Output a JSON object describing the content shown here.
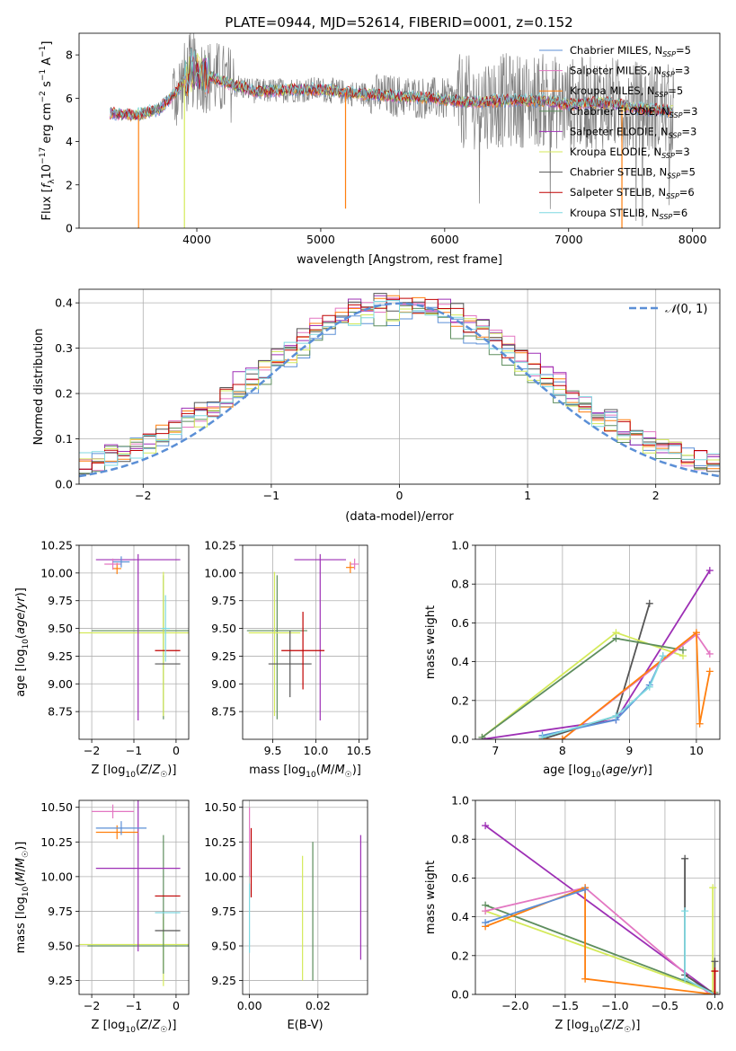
{
  "figure": {
    "title": "PLATE=0944, MJD=52614, FIBERID=0001, z=0.152"
  },
  "colors": {
    "chabrier_miles": "#5b8fd6",
    "salpeter_miles": "#e377c2",
    "kroupa_miles": "#ff7f0e",
    "chabrier_elodie": "#5e8e5e",
    "salpeter_elodie": "#9d2fb5",
    "kroupa_elodie": "#d4ea5a",
    "chabrier_stelib": "#555555",
    "salpeter_stelib": "#c00000",
    "kroupa_stelib": "#7fd8e0",
    "data_spectrum": "#808080",
    "normal_curve": "#5b8fd6"
  },
  "chart_data": [
    {
      "id": "spectrum",
      "type": "line",
      "xlabel": "wavelength [Angstrom, rest frame]",
      "ylabel": "Flux [f_λ 10^-17 erg cm^-2 s^-1 A^-1]",
      "xlim": [
        3050,
        8220
      ],
      "ylim": [
        0,
        9
      ],
      "xticks": [
        4000,
        5000,
        6000,
        7000,
        8000
      ],
      "yticks": [
        0,
        2,
        4,
        6,
        8
      ],
      "grid": false,
      "legend_position": "top-right",
      "legend": [
        "Chabrier MILES, N_SSP=5",
        "Salpeter MILES, N_SSP=3",
        "Kroupa MILES, N_SSP=5",
        "Chabrier ELODIE, N_SSP=3",
        "Salpeter ELODIE, N_SSP=3",
        "Kroupa ELODIE, N_SSP=3",
        "Chabrier STELIB, N_SSP=5",
        "Salpeter STELIB, N_SSP=6",
        "Kroupa STELIB, N_SSP=6"
      ],
      "model_continuum": {
        "x": [
          3300,
          3500,
          3700,
          3850,
          3950,
          4100,
          4300,
          4500,
          4800,
          5000,
          5300,
          5600,
          5900,
          6200,
          6500,
          6800,
          7000,
          7300,
          7600,
          7850
        ],
        "y": [
          5.3,
          5.2,
          5.5,
          6.4,
          7.3,
          7.0,
          6.6,
          6.3,
          6.4,
          6.4,
          6.2,
          6.1,
          6.0,
          5.8,
          5.9,
          5.9,
          5.7,
          5.8,
          5.5,
          5.4
        ]
      },
      "data_extent": [
        3300,
        7850
      ],
      "notable_lines": {
        "x": [
          3530,
          3900,
          5200,
          7430
        ],
        "y": [
          0,
          0,
          0.9,
          0
        ]
      }
    },
    {
      "id": "residuals",
      "type": "histogram",
      "xlabel": "(data-model)/error",
      "ylabel": "Normed distribution",
      "xlim": [
        -2.5,
        2.5
      ],
      "ylim": [
        0,
        0.43
      ],
      "xticks": [
        -2,
        -1,
        0,
        1,
        2
      ],
      "yticks": [
        0.0,
        0.1,
        0.2,
        0.3,
        0.4
      ],
      "grid": true,
      "legend_position": "top-right",
      "legend": [
        "N(0,1)"
      ],
      "bins": 50,
      "series_amplitude": [
        0.36,
        0.39,
        0.38,
        0.36,
        0.4,
        0.37,
        0.39,
        0.38,
        0.37
      ]
    },
    {
      "id": "age_vs_Z",
      "type": "errorbar",
      "xlabel": "Z [log10(Z/Z☉)]",
      "ylabel": "age [log10(age/yr)]",
      "xlim": [
        -2.3,
        0.3
      ],
      "ylim": [
        8.5,
        10.25
      ],
      "xticks": [
        -2,
        -1,
        0
      ],
      "yticks": [
        8.75,
        9.0,
        9.25,
        9.5,
        9.75,
        10.0,
        10.25
      ],
      "grid": true,
      "points": [
        {
          "series": "Chabrier ELODIE",
          "x": -0.3,
          "y": 9.48,
          "xerr": 1.7,
          "yerr": [
            0.8,
            0.5
          ]
        },
        {
          "series": "Kroupa ELODIE",
          "x": -0.3,
          "y": 9.46,
          "xerr": 2.0,
          "yerr": [
            0.75,
            0.55
          ]
        },
        {
          "series": "Chabrier STELIB",
          "x": -0.2,
          "y": 9.18,
          "xerr": 0.3,
          "yerr": 0.0
        },
        {
          "series": "Salpeter STELIB",
          "x": -0.2,
          "y": 9.3,
          "xerr": 0.3,
          "yerr": 0.0
        },
        {
          "series": "Salpeter ELODIE",
          "x": -0.9,
          "y": 10.12,
          "xerr": 1.0,
          "yerr": [
            1.45,
            0.05
          ]
        },
        {
          "series": "Kroupa MILES",
          "x": -1.4,
          "y": 10.04,
          "xerr": 0.1,
          "yerr": 0.05
        },
        {
          "series": "Salpeter MILES",
          "x": -1.5,
          "y": 10.08,
          "xerr": 0.2,
          "yerr": 0.05
        },
        {
          "series": "Chabrier MILES",
          "x": -1.3,
          "y": 10.1,
          "xerr": 0.2,
          "yerr": 0.05
        },
        {
          "series": "Kroupa STELIB",
          "x": -0.25,
          "y": 9.5,
          "xerr": 0.1,
          "yerr": 0.3
        }
      ]
    },
    {
      "id": "age_vs_mass",
      "type": "errorbar",
      "xlabel": "mass [log10(M/M☉)]",
      "ylabel": "",
      "xlim": [
        9.15,
        10.6
      ],
      "ylim": [
        8.5,
        10.25
      ],
      "xticks": [
        9.5,
        10.0,
        10.5
      ],
      "yticks": [
        8.75,
        9.0,
        9.25,
        9.5,
        9.75,
        10.0,
        10.25
      ],
      "grid": true,
      "points": [
        {
          "series": "Chabrier ELODIE",
          "x": 9.55,
          "y": 9.48,
          "xerr": 0.35,
          "yerr": [
            0.8,
            0.5
          ]
        },
        {
          "series": "Kroupa ELODIE",
          "x": 9.52,
          "y": 9.46,
          "xerr": 0.3,
          "yerr": [
            0.75,
            0.55
          ]
        },
        {
          "series": "Salpeter ELODIE",
          "x": 10.05,
          "y": 10.12,
          "xerr": 0.3,
          "yerr": [
            1.45,
            0.05
          ]
        },
        {
          "series": "Chabrier STELIB",
          "x": 9.7,
          "y": 9.18,
          "xerr": 0.25,
          "yerr": 0.3
        },
        {
          "series": "Salpeter STELIB",
          "x": 9.85,
          "y": 9.3,
          "xerr": 0.25,
          "yerr": 0.35
        },
        {
          "series": "Kroupa MILES",
          "x": 10.4,
          "y": 10.05,
          "xerr": 0.05,
          "yerr": 0.05
        },
        {
          "series": "Salpeter MILES",
          "x": 10.45,
          "y": 10.08,
          "xerr": 0.05,
          "yerr": 0.05
        }
      ]
    },
    {
      "id": "weight_vs_age",
      "type": "line",
      "xlabel": "age [log10(age/yr)]",
      "ylabel": "mass weight",
      "xlim": [
        6.7,
        10.35
      ],
      "ylim": [
        0,
        1
      ],
      "xticks": [
        7,
        8,
        9,
        10
      ],
      "yticks": [
        0.0,
        0.2,
        0.4,
        0.6,
        0.8,
        1.0
      ],
      "grid": true,
      "series": [
        {
          "name": "Salpeter ELODIE",
          "x": [
            6.8,
            8.8,
            10.2
          ],
          "y": [
            0.0,
            0.1,
            0.87
          ]
        },
        {
          "name": "Chabrier STELIB",
          "x": [
            7.7,
            8.8,
            9.3
          ],
          "y": [
            0.0,
            0.12,
            0.7
          ]
        },
        {
          "name": "Kroupa ELODIE",
          "x": [
            6.8,
            8.8,
            9.8
          ],
          "y": [
            0.01,
            0.55,
            0.43
          ]
        },
        {
          "name": "Chabrier ELODIE",
          "x": [
            6.8,
            8.8,
            9.8
          ],
          "y": [
            0.01,
            0.52,
            0.46
          ]
        },
        {
          "name": "Salpeter MILES",
          "x": [
            7.7,
            8.0,
            10.0,
            10.2
          ],
          "y": [
            0.0,
            0.0,
            0.54,
            0.44
          ]
        },
        {
          "name": "Kroupa MILES",
          "x": [
            7.7,
            8.0,
            10.0,
            10.05,
            10.2
          ],
          "y": [
            0.0,
            0.0,
            0.55,
            0.08,
            0.35
          ]
        },
        {
          "name": "Chabrier MILES",
          "x": [
            7.7,
            8.8,
            9.3,
            9.5
          ],
          "y": [
            0.02,
            0.1,
            0.28,
            0.43
          ]
        },
        {
          "name": "Kroupa STELIB",
          "x": [
            7.7,
            8.8,
            9.3,
            9.5
          ],
          "y": [
            0.01,
            0.12,
            0.27,
            0.43
          ]
        }
      ]
    },
    {
      "id": "mass_vs_Z",
      "type": "errorbar",
      "xlabel": "Z [log10(Z/Z☉)]",
      "ylabel": "mass [log10(M/M☉)]",
      "xlim": [
        -2.3,
        0.3
      ],
      "ylim": [
        9.15,
        10.55
      ],
      "xticks": [
        -2,
        -1,
        0
      ],
      "yticks": [
        9.25,
        9.5,
        9.75,
        10.0,
        10.25,
        10.5
      ],
      "grid": true,
      "points": [
        {
          "series": "Kroupa ELODIE",
          "x": -0.3,
          "y": 9.51,
          "xerr": 2.0,
          "yerr": [
            0.3,
            0.2
          ]
        },
        {
          "series": "Chabrier ELODIE",
          "x": -0.3,
          "y": 9.5,
          "xerr": 1.8,
          "yerr": [
            0.2,
            0.8
          ]
        },
        {
          "series": "Salpeter ELODIE",
          "x": -0.9,
          "y": 10.06,
          "xerr": 1.0,
          "yerr": 0.6
        },
        {
          "series": "Salpeter STELIB",
          "x": -0.2,
          "y": 9.86,
          "xerr": 0.3,
          "yerr": 0.0
        },
        {
          "series": "Chabrier STELIB",
          "x": -0.2,
          "y": 9.61,
          "xerr": 0.3,
          "yerr": 0.0
        },
        {
          "series": "Kroupa STELIB",
          "x": -0.2,
          "y": 9.74,
          "xerr": 0.3,
          "yerr": 0.0
        },
        {
          "series": "Kroupa MILES",
          "x": -1.4,
          "y": 10.32,
          "xerr": 0.5,
          "yerr": 0.05
        },
        {
          "series": "Chabrier MILES",
          "x": -1.3,
          "y": 10.35,
          "xerr": 0.6,
          "yerr": 0.05
        },
        {
          "series": "Salpeter MILES",
          "x": -1.5,
          "y": 10.47,
          "xerr": 0.5,
          "yerr": 0.05
        }
      ]
    },
    {
      "id": "mass_vs_ebv",
      "type": "errorbar",
      "xlabel": "E(B-V)",
      "ylabel": "",
      "xlim": [
        -0.002,
        0.0345
      ],
      "ylim": [
        9.15,
        10.55
      ],
      "xticks": [
        0.0,
        0.02
      ],
      "yticks": [
        9.25,
        9.5,
        9.75,
        10.0,
        10.25,
        10.5
      ],
      "grid": true,
      "points": [
        {
          "series": "Salpeter MILES",
          "x": 0.0,
          "y": 10.25,
          "xerr": 0.0,
          "yerr": 0.25
        },
        {
          "series": "Salpeter STELIB",
          "x": 0.0005,
          "y": 10.1,
          "xerr": 0.0,
          "yerr": 0.25
        },
        {
          "series": "Kroupa STELIB",
          "x": 0.0,
          "y": 9.7,
          "xerr": 0.0,
          "yerr": 0.25
        },
        {
          "series": "Kroupa ELODIE",
          "x": 0.0155,
          "y": 9.7,
          "xerr": 0.0,
          "yerr": 0.45
        },
        {
          "series": "Chabrier ELODIE",
          "x": 0.0185,
          "y": 9.75,
          "xerr": 0.0,
          "yerr": 0.5
        },
        {
          "series": "Salpeter ELODIE",
          "x": 0.0325,
          "y": 9.85,
          "xerr": 0.0,
          "yerr": 0.45
        }
      ]
    },
    {
      "id": "weight_vs_Z",
      "type": "line",
      "xlabel": "Z [log10(Z/Z☉)]",
      "ylabel": "mass weight",
      "xlim": [
        -2.4,
        0.05
      ],
      "ylim": [
        0,
        1
      ],
      "xticks": [
        -2.0,
        -1.5,
        -1.0,
        -0.5,
        0.0
      ],
      "yticks": [
        0.0,
        0.2,
        0.4,
        0.6,
        0.8,
        1.0
      ],
      "grid": true,
      "series": [
        {
          "name": "Salpeter ELODIE",
          "x": [
            -2.3,
            0.0
          ],
          "y": [
            0.87,
            0.0
          ]
        },
        {
          "name": "Chabrier ELODIE",
          "x": [
            -2.3,
            0.0
          ],
          "y": [
            0.46,
            0.01
          ]
        },
        {
          "name": "Kroupa ELODIE",
          "x": [
            -2.3,
            -0.02,
            -0.02
          ],
          "y": [
            0.43,
            0.01,
            0.55
          ]
        },
        {
          "name": "Salpeter MILES",
          "x": [
            -2.3,
            -1.3,
            -0.05
          ],
          "y": [
            0.43,
            0.55,
            0.0
          ]
        },
        {
          "name": "Kroupa MILES",
          "x": [
            -2.3,
            -1.3,
            -1.3,
            0.0
          ],
          "y": [
            0.35,
            0.55,
            0.08,
            0.0
          ]
        },
        {
          "name": "Chabrier MILES",
          "x": [
            -2.3,
            -1.3
          ],
          "y": [
            0.37,
            0.54
          ]
        },
        {
          "name": "Chabrier STELIB",
          "x": [
            -0.3,
            -0.3,
            0.0,
            0.0
          ],
          "y": [
            0.7,
            0.1,
            0.0,
            0.17
          ]
        },
        {
          "name": "Kroupa STELIB",
          "x": [
            -0.3,
            -0.3,
            0.0
          ],
          "y": [
            0.43,
            0.08,
            0.0
          ]
        },
        {
          "name": "Salpeter STELIB",
          "x": [
            0.0,
            0.0
          ],
          "y": [
            0.0,
            0.12
          ]
        }
      ]
    }
  ]
}
